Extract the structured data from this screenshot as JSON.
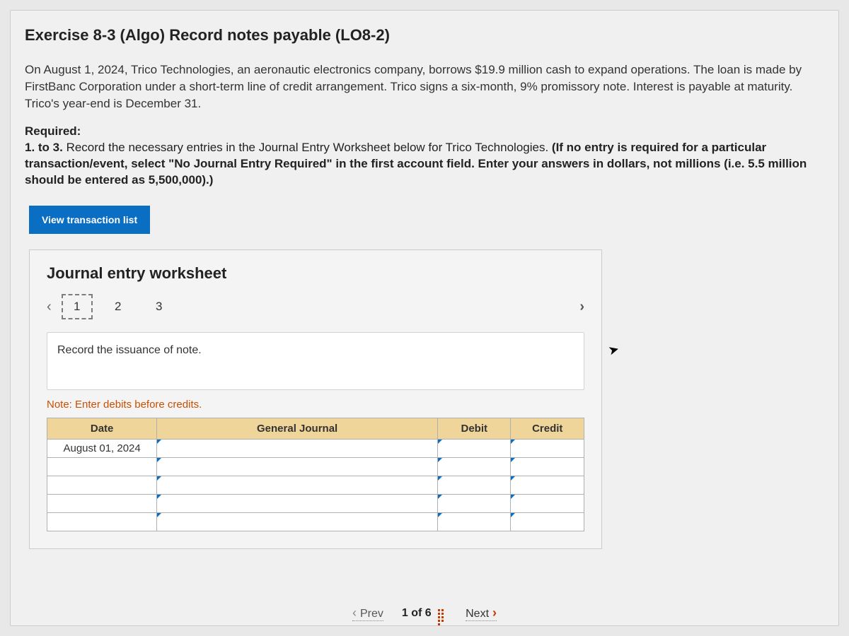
{
  "exercise": {
    "title": "Exercise 8-3 (Algo) Record notes payable (LO8-2)",
    "paragraph": "On August 1, 2024, Trico Technologies, an aeronautic electronics company, borrows $19.9 million cash to expand operations. The loan is made by FirstBanc Corporation under a short-term line of credit arrangement. Trico signs a six-month, 9% promissory note. Interest is payable at maturity. Trico's year-end is December 31.",
    "required_label": "Required:",
    "required_plain_prefix": "1. to 3. ",
    "required_plain": "Record the necessary entries in the Journal Entry Worksheet below for Trico Technologies. ",
    "required_bold": "(If no entry is required for a particular transaction/event, select \"No Journal Entry Required\" in the first account field. Enter your answers in dollars, not millions (i.e. 5.5 million should be entered as 5,500,000).)"
  },
  "buttons": {
    "view_transaction_list": "View transaction list"
  },
  "worksheet": {
    "title": "Journal entry worksheet",
    "steps": [
      "1",
      "2",
      "3"
    ],
    "active_step_index": 0,
    "instruction": "Record the issuance of note.",
    "note": "Note: Enter debits before credits.",
    "columns": {
      "date": "Date",
      "general_journal": "General Journal",
      "debit": "Debit",
      "credit": "Credit"
    },
    "rows": [
      {
        "date": "August 01, 2024",
        "gj": "",
        "debit": "",
        "credit": ""
      },
      {
        "date": "",
        "gj": "",
        "debit": "",
        "credit": ""
      },
      {
        "date": "",
        "gj": "",
        "debit": "",
        "credit": ""
      },
      {
        "date": "",
        "gj": "",
        "debit": "",
        "credit": ""
      },
      {
        "date": "",
        "gj": "",
        "debit": "",
        "credit": ""
      }
    ]
  },
  "nav": {
    "prev": "Prev",
    "counter": "1  of  6",
    "next": "Next"
  },
  "colors": {
    "button_bg": "#0a6ec2",
    "header_cell_bg": "#f0d59a",
    "note_text": "#c94f00",
    "accent": "#c23a00"
  }
}
